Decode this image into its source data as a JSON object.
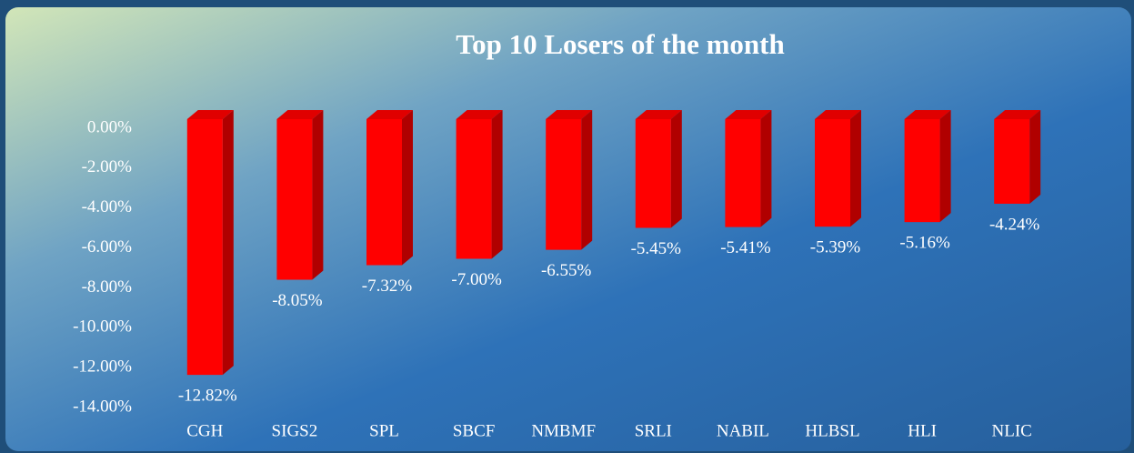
{
  "chart_data": {
    "type": "bar3d",
    "title": "Top 10 Losers of the month",
    "categories": [
      "CGH",
      "SIGS2",
      "SPL",
      "SBCF",
      "NMBMF",
      "SRLI",
      "NABIL",
      "HLBSL",
      "HLI",
      "NLIC"
    ],
    "values": [
      -12.82,
      -8.05,
      -7.32,
      -7.0,
      -6.55,
      -5.45,
      -5.41,
      -5.39,
      -5.16,
      -4.24
    ],
    "value_labels": [
      "-12.82%",
      "-8.05%",
      "-7.32%",
      "-7.00%",
      "-6.55%",
      "-5.45%",
      "-5.41%",
      "-5.39%",
      "-5.16%",
      "-4.24%"
    ],
    "color": "#ff0000",
    "ylim": [
      -14,
      0
    ],
    "yticks": [
      {
        "value": 0,
        "label": "0.00%"
      },
      {
        "value": -2,
        "label": "-2.00%"
      },
      {
        "value": -4,
        "label": "-4.00%"
      },
      {
        "value": -6,
        "label": "-6.00%"
      },
      {
        "value": -8,
        "label": "-8.00%"
      },
      {
        "value": -10,
        "label": "-10.00%"
      },
      {
        "value": -12,
        "label": "-12.00%"
      },
      {
        "value": -14,
        "label": "-14.00%"
      }
    ],
    "grid": false
  }
}
